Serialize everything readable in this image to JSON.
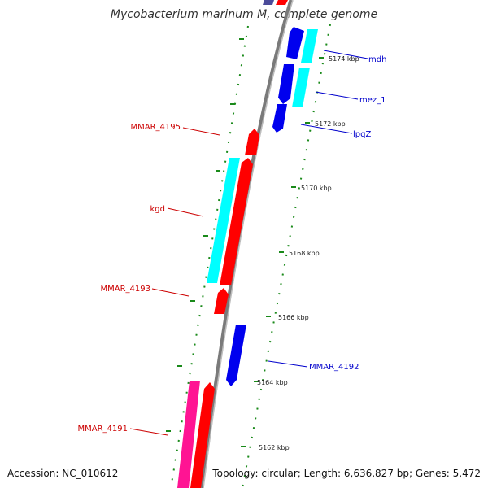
{
  "title": "Mycobacterium marinum M, complete genome",
  "footer": {
    "accession": "Accession: NC_010612",
    "stats": "Topology: circular; Length: 6,636,827 bp; Genes: 5,472"
  },
  "colors": {
    "forward_gene": "#ff0000",
    "reverse_gene": "#0000ee",
    "forward_other": "#00ffff",
    "reverse_other": "#00ffff",
    "pseudo": "#ff1493",
    "backbone": "#8c8c8c",
    "tick": "#1a8a1a",
    "label_forward": "#cc0000",
    "label_reverse": "#0000cc"
  },
  "ticks": [
    {
      "label": "5174 kbp"
    },
    {
      "label": "5172 kbp"
    },
    {
      "label": "5170 kbp"
    },
    {
      "label": "5168 kbp"
    },
    {
      "label": "5166 kbp"
    },
    {
      "label": "5164 kbp"
    },
    {
      "label": "5162 kbp"
    }
  ],
  "gene_labels": [
    {
      "text": "mdh",
      "strand": "reverse"
    },
    {
      "text": "mez_1",
      "strand": "reverse"
    },
    {
      "text": "lpqZ",
      "strand": "reverse"
    },
    {
      "text": "MMAR_4195",
      "strand": "forward"
    },
    {
      "text": "kgd",
      "strand": "forward"
    },
    {
      "text": "MMAR_4193",
      "strand": "forward"
    },
    {
      "text": "MMAR_4192",
      "strand": "reverse"
    },
    {
      "text": "MMAR_4191",
      "strand": "forward"
    }
  ]
}
